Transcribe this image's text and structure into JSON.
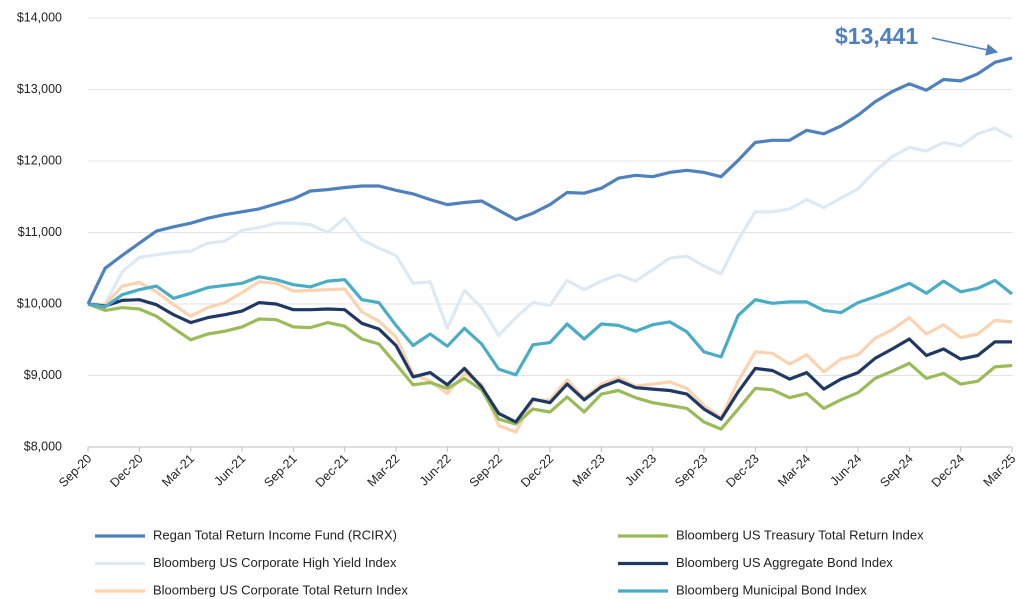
{
  "chart_data": {
    "type": "line",
    "annotation": "$13,441",
    "categories": [
      "Sep-20",
      null,
      null,
      "Dec-20",
      null,
      null,
      "Mar-21",
      null,
      null,
      "Jun-21",
      null,
      null,
      "Sep-21",
      null,
      null,
      "Dec-21",
      null,
      null,
      "Mar-22",
      null,
      null,
      "Jun-22",
      null,
      null,
      "Sep-22",
      null,
      null,
      "Dec-22",
      null,
      null,
      "Mar-23",
      null,
      null,
      "Jun-23",
      null,
      null,
      "Sep-23",
      null,
      null,
      "Dec-23",
      null,
      null,
      "Mar-24",
      null,
      null,
      "Jun-24",
      null,
      null,
      "Sep-24",
      null,
      null,
      "Dec-24",
      null,
      null,
      "Mar-25"
    ],
    "ylim": [
      8000,
      14000
    ],
    "yticks": [
      {
        "value": 8000,
        "label": "$8,000"
      },
      {
        "value": 9000,
        "label": "$9,000"
      },
      {
        "value": 10000,
        "label": "$10,000"
      },
      {
        "value": 11000,
        "label": "$11,000"
      },
      {
        "value": 12000,
        "label": "$12,000"
      },
      {
        "value": 13000,
        "label": "$13,000"
      },
      {
        "value": 14000,
        "label": "$14,000"
      }
    ],
    "grid": true,
    "series": [
      {
        "name": "Regan Total Return Income Fund (RCIRX)",
        "color": "#4f81bd",
        "values": [
          10000,
          10500,
          10680,
          10850,
          11020,
          11080,
          11130,
          11200,
          11250,
          11290,
          11330,
          11400,
          11470,
          11580,
          11600,
          11630,
          11650,
          11650,
          11590,
          11540,
          11460,
          11390,
          11420,
          11440,
          11310,
          11180,
          11270,
          11390,
          11560,
          11550,
          11620,
          11760,
          11800,
          11780,
          11840,
          11870,
          11840,
          11780,
          12010,
          12260,
          12290,
          12290,
          12430,
          12380,
          12490,
          12640,
          12830,
          12970,
          13080,
          12990,
          13140,
          13120,
          13220,
          13380,
          13441
        ]
      },
      {
        "name": "Bloomberg US Corporate High Yield Index",
        "color": "#dde9f3",
        "values": [
          10000,
          10000,
          10450,
          10650,
          10690,
          10720,
          10740,
          10850,
          10880,
          11030,
          11070,
          11130,
          11130,
          11110,
          11000,
          11200,
          10900,
          10780,
          10680,
          10290,
          10310,
          9660,
          10190,
          9950,
          9560,
          9810,
          10020,
          9980,
          10330,
          10200,
          10320,
          10410,
          10320,
          10480,
          10640,
          10670,
          10530,
          10420,
          10900,
          11290,
          11290,
          11330,
          11460,
          11350,
          11480,
          11610,
          11860,
          12060,
          12190,
          12140,
          12260,
          12210,
          12380,
          12460,
          12330
        ]
      },
      {
        "name": "Bloomberg US Corporate Total Return Index",
        "color": "#fbd3b0",
        "values": [
          10000,
          9990,
          10250,
          10300,
          10170,
          9990,
          9830,
          9950,
          10020,
          10160,
          10310,
          10290,
          10180,
          10190,
          10200,
          10210,
          9890,
          9760,
          9540,
          9020,
          8920,
          8750,
          9030,
          8880,
          8300,
          8210,
          8650,
          8660,
          8940,
          8680,
          8880,
          8970,
          8850,
          8880,
          8910,
          8820,
          8580,
          8410,
          8920,
          9330,
          9310,
          9160,
          9290,
          9050,
          9230,
          9290,
          9520,
          9640,
          9810,
          9580,
          9710,
          9530,
          9580,
          9770,
          9750
        ]
      },
      {
        "name": "Bloomberg US Treasury Total Return Index",
        "color": "#9bbb59",
        "values": [
          10000,
          9910,
          9950,
          9930,
          9830,
          9660,
          9500,
          9580,
          9620,
          9680,
          9790,
          9780,
          9680,
          9670,
          9740,
          9690,
          9510,
          9440,
          9160,
          8870,
          8900,
          8820,
          8960,
          8800,
          8390,
          8320,
          8530,
          8490,
          8700,
          8490,
          8740,
          8790,
          8690,
          8620,
          8580,
          8540,
          8350,
          8250,
          8530,
          8820,
          8800,
          8690,
          8750,
          8540,
          8660,
          8760,
          8960,
          9060,
          9170,
          8960,
          9030,
          8880,
          8920,
          9120,
          9140
        ]
      },
      {
        "name": "Bloomberg US Aggregate Bond Index",
        "color": "#1f3864",
        "values": [
          10000,
          9970,
          10050,
          10060,
          9990,
          9850,
          9740,
          9810,
          9850,
          9900,
          10020,
          10000,
          9920,
          9920,
          9930,
          9920,
          9730,
          9650,
          9420,
          8980,
          9040,
          8870,
          9100,
          8840,
          8470,
          8350,
          8670,
          8620,
          8880,
          8660,
          8840,
          8930,
          8830,
          8810,
          8790,
          8740,
          8530,
          8390,
          8770,
          9100,
          9070,
          8950,
          9040,
          8810,
          8950,
          9040,
          9240,
          9370,
          9510,
          9280,
          9370,
          9230,
          9280,
          9470,
          9470
        ]
      },
      {
        "name": "Bloomberg Municipal Bond Index",
        "color": "#4bacc6",
        "values": [
          10000,
          9960,
          10130,
          10200,
          10250,
          10080,
          10150,
          10230,
          10260,
          10290,
          10380,
          10340,
          10270,
          10240,
          10320,
          10340,
          10060,
          10020,
          9700,
          9420,
          9580,
          9410,
          9660,
          9440,
          9090,
          9010,
          9430,
          9460,
          9720,
          9510,
          9720,
          9700,
          9620,
          9710,
          9750,
          9610,
          9330,
          9260,
          9840,
          10060,
          10010,
          10030,
          10030,
          9910,
          9880,
          10020,
          10100,
          10190,
          10290,
          10150,
          10320,
          10170,
          10220,
          10330,
          10140
        ]
      }
    ]
  }
}
